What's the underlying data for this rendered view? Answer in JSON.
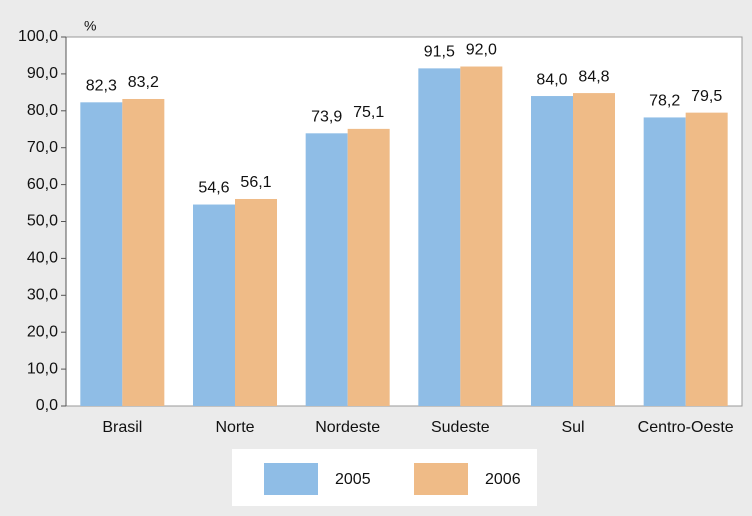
{
  "chart_data": {
    "type": "bar",
    "y_label": "%",
    "categories": [
      "Brasil",
      "Norte",
      "Nordeste",
      "Sudeste",
      "Sul",
      "Centro-Oeste"
    ],
    "series": [
      {
        "name": "2005",
        "color": "#8fbde6",
        "values": [
          82.3,
          54.6,
          73.9,
          91.5,
          84.0,
          78.2
        ],
        "value_labels": [
          "82,3",
          "54,6",
          "73,9",
          "91,5",
          "84,0",
          "78,2"
        ]
      },
      {
        "name": "2006",
        "color": "#efbb87",
        "values": [
          83.2,
          56.1,
          75.1,
          92.0,
          84.8,
          79.5
        ],
        "value_labels": [
          "83,2",
          "56,1",
          "75,1",
          "92,0",
          "84,8",
          "79,5"
        ]
      }
    ],
    "ylim": [
      0,
      100
    ],
    "yticks": [
      {
        "value": 0,
        "label": "0,0"
      },
      {
        "value": 10,
        "label": "10,0"
      },
      {
        "value": 20,
        "label": "20,0"
      },
      {
        "value": 30,
        "label": "30,0"
      },
      {
        "value": 40,
        "label": "40,0"
      },
      {
        "value": 50,
        "label": "50,0"
      },
      {
        "value": 60,
        "label": "60,0"
      },
      {
        "value": 70,
        "label": "70,0"
      },
      {
        "value": 80,
        "label": "80,0"
      },
      {
        "value": 90,
        "label": "90,0"
      },
      {
        "value": 100,
        "label": "100,0"
      }
    ],
    "grid": false
  }
}
